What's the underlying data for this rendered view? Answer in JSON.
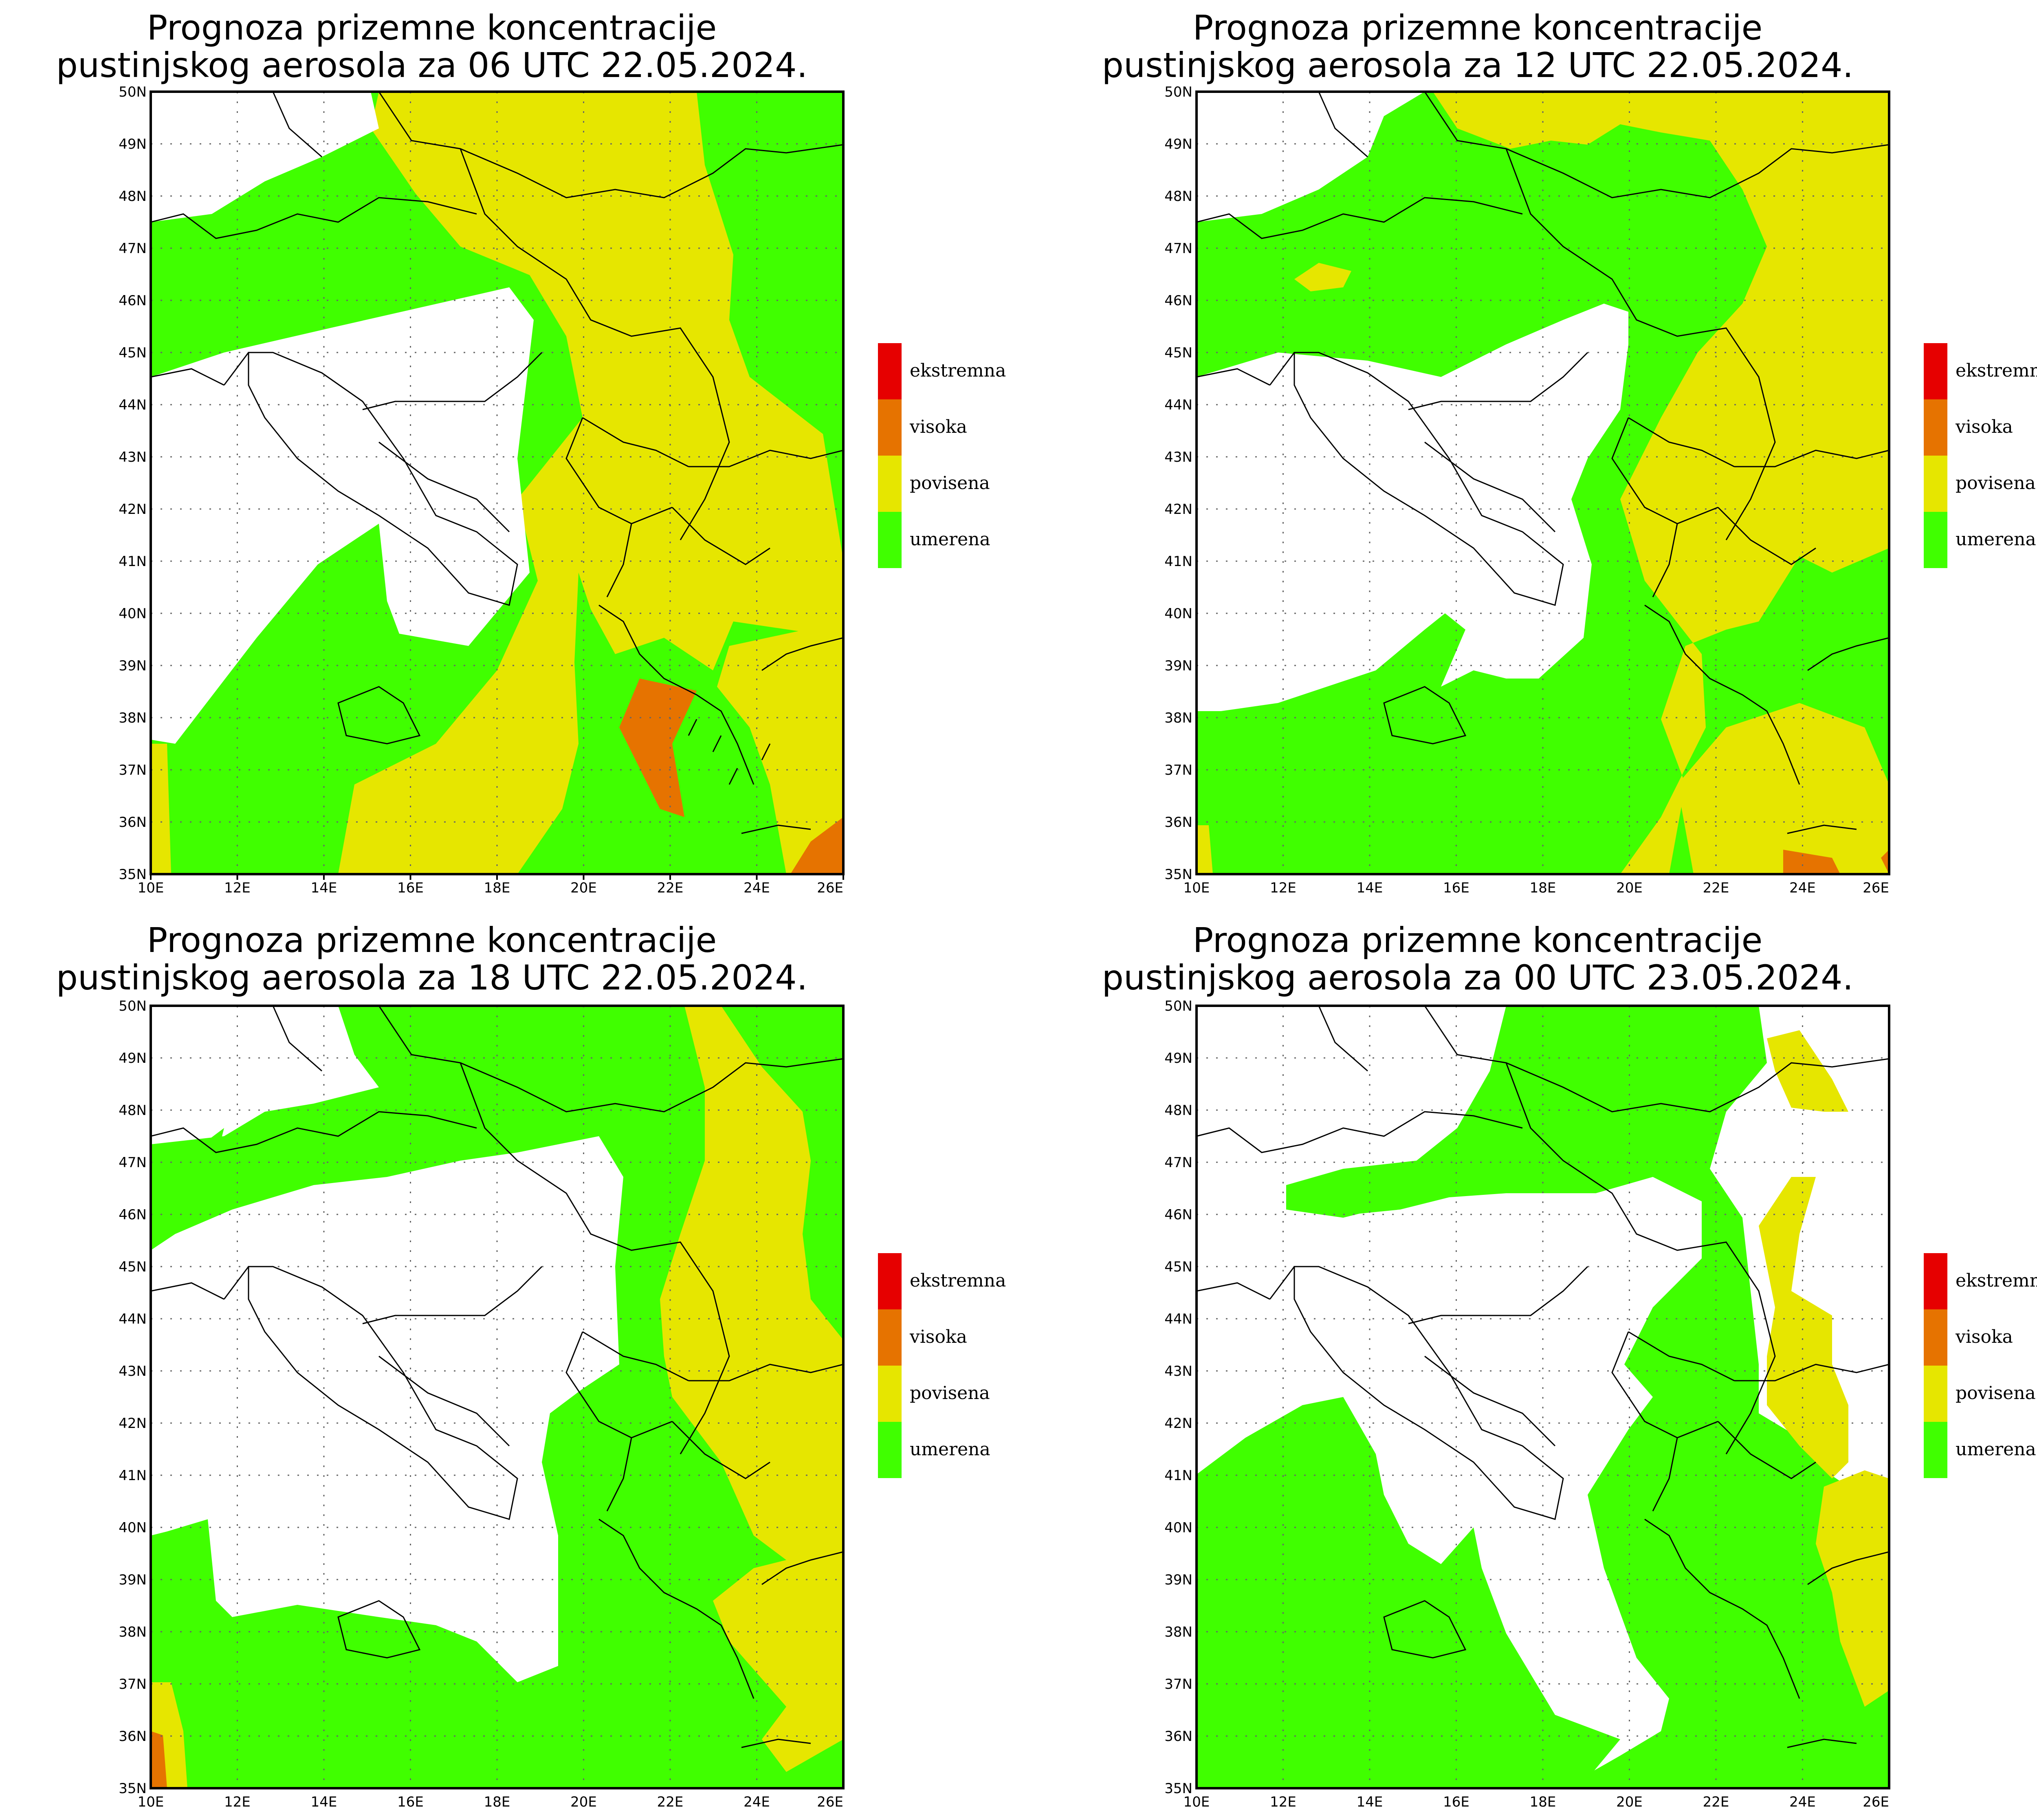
{
  "panels": [
    {
      "title_line1": "Prognoza prizemne koncentracije",
      "title_line2": "pustinjskog aerosola za 06 UTC 22.05.2024."
    },
    {
      "title_line1": "Prognoza prizemne koncentracije",
      "title_line2": "pustinjskog aerosola za 12 UTC 22.05.2024."
    },
    {
      "title_line1": "Prognoza prizemne koncentracije",
      "title_line2": "pustinjskog aerosola za 18 UTC 22.05.2024."
    },
    {
      "title_line1": "Prognoza prizemne koncentracije",
      "title_line2": "pustinjskog aerosola za 00 UTC 23.05.2024."
    }
  ],
  "legend": [
    {
      "label": "ekstremna",
      "color": "#e60000"
    },
    {
      "label": "visoka",
      "color": "#e67300"
    },
    {
      "label": "povisena",
      "color": "#e6e600"
    },
    {
      "label": "umerena",
      "color": "#40ff00"
    }
  ],
  "axes": {
    "lon_labels": [
      "10E",
      "12E",
      "14E",
      "16E",
      "18E",
      "20E",
      "22E",
      "24E",
      "26E"
    ],
    "lat_labels": [
      "35N",
      "36N",
      "37N",
      "38N",
      "39N",
      "40N",
      "41N",
      "42N",
      "43N",
      "44N",
      "45N",
      "46N",
      "47N",
      "48N",
      "49N",
      "50N"
    ]
  },
  "colors": {
    "white": "#ffffff",
    "border": "#000000",
    "grid": "#666666"
  }
}
